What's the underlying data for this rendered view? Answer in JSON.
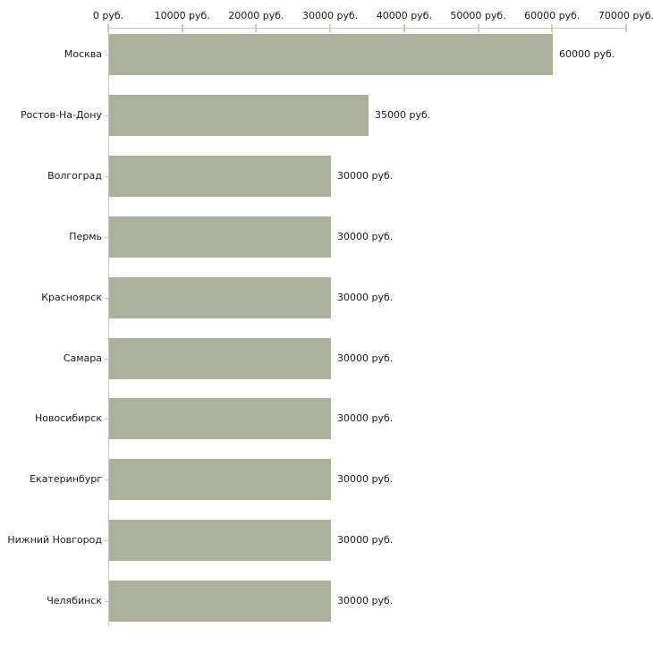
{
  "chart_data": {
    "type": "bar",
    "orientation": "horizontal",
    "title": "",
    "categories": [
      "Москва",
      "Ростов-На-Дону",
      "Волгоград",
      "Пермь",
      "Красноярск",
      "Самара",
      "Новосибирск",
      "Екатеринбург",
      "Нижний Новгород",
      "Челябинск"
    ],
    "values": [
      60000,
      35000,
      30000,
      30000,
      30000,
      30000,
      30000,
      30000,
      30000,
      30000
    ],
    "value_labels": [
      "60000 руб.",
      "35000 руб.",
      "30000 руб.",
      "30000 руб.",
      "30000 руб.",
      "30000 руб.",
      "30000 руб.",
      "30000 руб.",
      "30000 руб.",
      "30000 руб."
    ],
    "x_ticks": [
      0,
      10000,
      20000,
      30000,
      40000,
      50000,
      60000,
      70000
    ],
    "x_tick_labels": [
      "0 руб.",
      "10000 руб.",
      "20000 руб.",
      "30000 руб.",
      "40000 руб.",
      "50000 руб.",
      "60000 руб.",
      "70000 руб."
    ],
    "xlim": [
      0,
      70000
    ],
    "unit": "руб.",
    "grid": false,
    "legend": false,
    "axis_position": "top",
    "colors": {
      "bar": "#abb19b",
      "axis_line": "#c6c6c6",
      "tick": "#cfcfa6",
      "text": "#1a1a1a"
    }
  }
}
